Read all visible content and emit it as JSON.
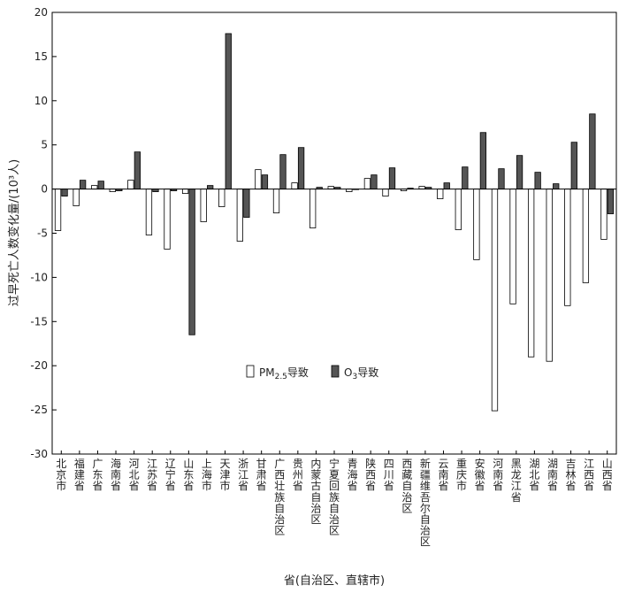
{
  "chart_data": {
    "type": "bar",
    "xlabel": "省(自治区、直辖市)",
    "ylabel": "过早死亡人数变化量/(10³人)",
    "ylim": [
      -30,
      20
    ],
    "yticks": [
      -30,
      -25,
      -20,
      -15,
      -10,
      -5,
      0,
      5,
      10,
      15,
      20
    ],
    "categories": [
      "北京市",
      "福建省",
      "广东省",
      "海南省",
      "河北省",
      "江苏省",
      "辽宁省",
      "山东省",
      "上海市",
      "天津市",
      "浙江省",
      "甘肃省",
      "广西壮族自治区",
      "贵州省",
      "内蒙古自治区",
      "宁夏回族自治区",
      "青海省",
      "陕西省",
      "四川省",
      "西藏自治区",
      "新疆维吾尔自治区",
      "云南省",
      "重庆市",
      "安徽省",
      "河南省",
      "黑龙江省",
      "湖北省",
      "湖南省",
      "吉林省",
      "江西省",
      "山西省"
    ],
    "series": [
      {
        "name": "PM2.5导致",
        "fill": "#ffffff",
        "values": [
          -4.7,
          -1.9,
          0.4,
          -0.3,
          1.0,
          -5.2,
          -6.8,
          -0.5,
          -3.7,
          -2.0,
          -5.9,
          2.2,
          -2.7,
          0.7,
          -4.4,
          0.3,
          -0.3,
          1.2,
          -0.8,
          -0.2,
          0.3,
          -1.1,
          -4.6,
          -8.0,
          -25.1,
          -13.0,
          -19.0,
          -19.5,
          -13.2,
          -10.6,
          -5.7
        ]
      },
      {
        "name": "O3导致",
        "fill": "#555555",
        "values": [
          -0.8,
          1.0,
          0.9,
          -0.2,
          4.2,
          -0.3,
          -0.2,
          -16.5,
          0.4,
          17.6,
          -3.2,
          1.6,
          3.9,
          4.7,
          0.2,
          0.2,
          0.0,
          1.6,
          2.4,
          0.1,
          0.2,
          0.7,
          2.5,
          6.4,
          2.3,
          3.8,
          1.9,
          0.6,
          5.3,
          8.5,
          -2.8
        ]
      }
    ],
    "legend": {
      "placement": "lower-middle",
      "items": [
        {
          "base": "PM",
          "sub": "2.5",
          "rest": "导致"
        },
        {
          "base": "O",
          "sub": "3",
          "rest": "导致"
        }
      ]
    }
  }
}
